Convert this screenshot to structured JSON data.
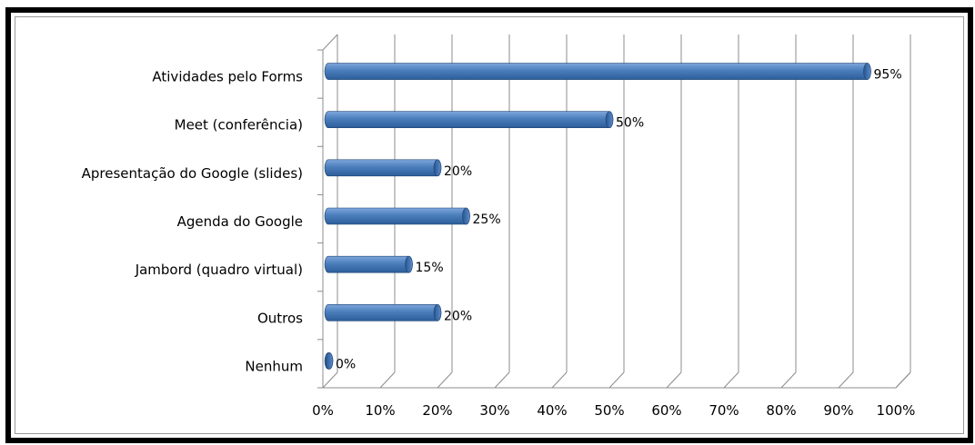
{
  "chart_data": {
    "type": "bar",
    "orientation": "horizontal",
    "categories": [
      "Atividades pelo Forms",
      "Meet (conferência)",
      "Apresentação do Google (slides)",
      "Agenda do Google",
      "Jambord (quadro virtual)",
      "Outros",
      "Nenhum"
    ],
    "values": [
      95,
      50,
      20,
      25,
      15,
      20,
      0
    ],
    "value_labels": [
      "95%",
      "50%",
      "20%",
      "25%",
      "15%",
      "20%",
      "0%"
    ],
    "x_ticks": [
      "0%",
      "10%",
      "20%",
      "30%",
      "40%",
      "50%",
      "60%",
      "70%",
      "80%",
      "90%",
      "100%"
    ],
    "xlim": [
      0,
      100
    ],
    "grid": true,
    "legend": "none",
    "bar_color": "#4a7ebb"
  }
}
